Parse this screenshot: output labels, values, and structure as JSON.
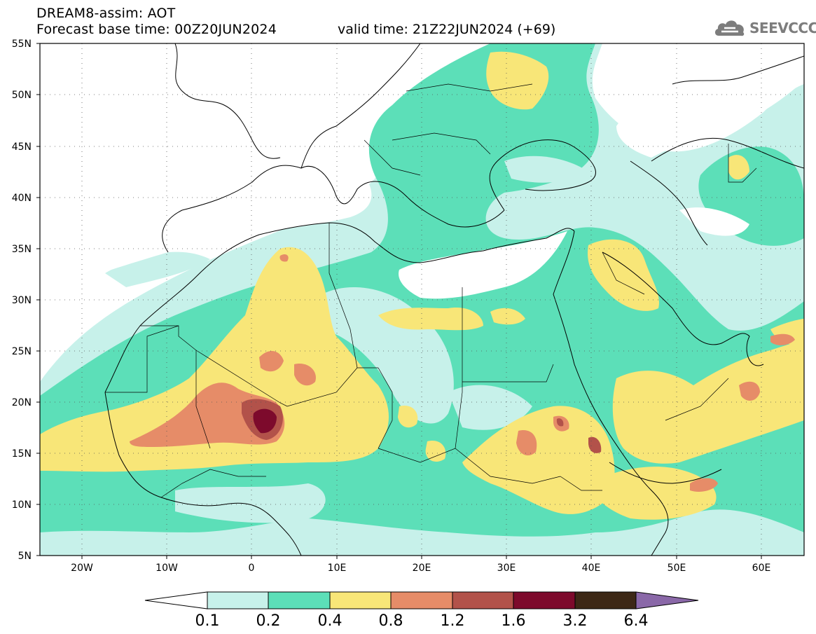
{
  "header": {
    "line1": "DREAM8-assim: AOT",
    "line2": "Forecast base time: 00Z20JUN2024",
    "valid": "valid time: 21Z22JUN2024 (+69)"
  },
  "logo": {
    "text": "SEEVCCC",
    "icon": "cloud-icon"
  },
  "map": {
    "lon_range": [
      -25,
      65
    ],
    "lat_range": [
      5,
      55
    ],
    "lat_ticks": [
      "55N",
      "50N",
      "45N",
      "40N",
      "35N",
      "30N",
      "25N",
      "20N",
      "15N",
      "10N",
      "5N"
    ],
    "lon_ticks": [
      "20W",
      "10W",
      "0",
      "10E",
      "20E",
      "30E",
      "40E",
      "50E",
      "60E"
    ],
    "variable": "AOT",
    "grid": "dotted"
  },
  "colorbar": {
    "labels": [
      "0.1",
      "0.2",
      "0.4",
      "0.8",
      "1.2",
      "1.6",
      "3.2",
      "6.4"
    ],
    "colors": [
      "#ffffff",
      "#c7f1ea",
      "#5cdfb8",
      "#f8e678",
      "#e68c68",
      "#b2524a",
      "#7d0a2c",
      "#3d2816",
      "#8a68a8"
    ]
  },
  "colors": {
    "c1": "#c7f1ea",
    "c2": "#5cdfb8",
    "c3": "#f8e678",
    "c4": "#e68c68",
    "c5": "#b2524a",
    "c6": "#7d0a2c"
  }
}
